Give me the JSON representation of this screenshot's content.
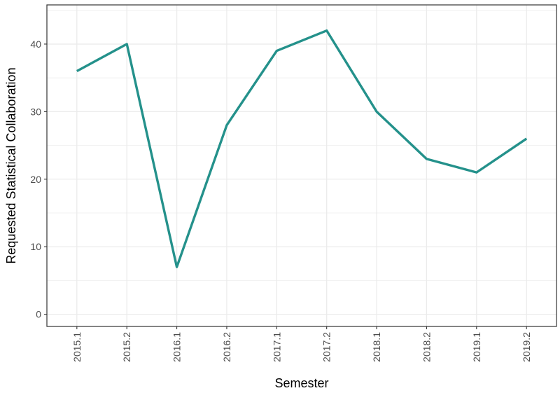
{
  "chart_data": {
    "type": "line",
    "title": "",
    "xlabel": "Semester",
    "ylabel": "Requested Statistical Collaboration",
    "categories": [
      "2015.1",
      "2015.2",
      "2016.1",
      "2016.2",
      "2017.1",
      "2017.2",
      "2018.1",
      "2018.2",
      "2019.1",
      "2019.2"
    ],
    "series": [
      {
        "values": [
          36,
          40,
          7,
          28,
          39,
          42,
          30,
          23,
          21,
          26
        ]
      }
    ],
    "ylim": [
      -1.8,
      45.8
    ],
    "yticks": [
      0,
      10,
      20,
      30,
      40
    ],
    "grid": true,
    "legend": "none",
    "colors": {
      "line": "#24918B",
      "grid": "#EBEBEB",
      "panel_border": "#333333"
    }
  }
}
